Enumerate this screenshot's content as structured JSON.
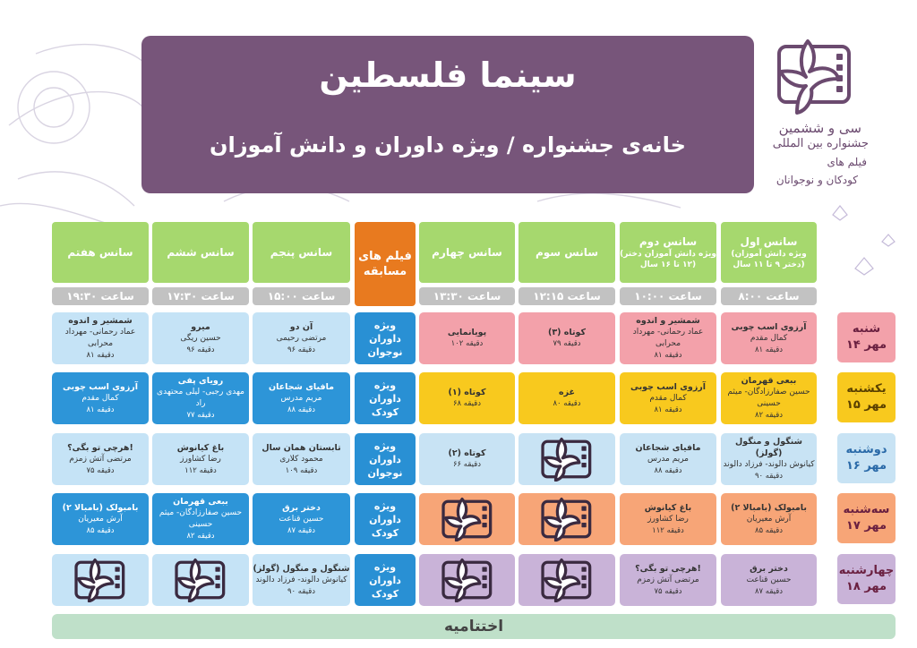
{
  "header": {
    "title": "سینما فلسطین",
    "subtitle": "خانه‌ی جشنواره / ویژه داوران و دانش آموزان"
  },
  "logo": {
    "line1": "سی و ششمین",
    "line2": "جشنواره بین المللی",
    "line3": "فیلم های",
    "line4": "کودکان و نوجوانان"
  },
  "columns": [
    {
      "label": "سانس اول",
      "sub": "(ویژه دانش آموزان دختر ۹ تا ۱۱ سال)",
      "time": "ساعت ۸:۰۰"
    },
    {
      "label": "سانس دوم",
      "sub": "(ویژه دانش آموزان دختر ۱۲ تا ۱۶ سال)",
      "time": "ساعت ۱۰:۰۰"
    },
    {
      "label": "سانس سوم",
      "sub": "",
      "time": "ساعت ۱۲:۱۵"
    },
    {
      "label": "سانس چهارم",
      "sub": "",
      "time": "ساعت ۱۳:۳۰"
    },
    {
      "label": "فیلم های مسابقه",
      "sub": "",
      "time": ""
    },
    {
      "label": "سانس پنجم",
      "sub": "",
      "time": "ساعت ۱۵:۰۰"
    },
    {
      "label": "سانس ششم",
      "sub": "",
      "time": "ساعت ۱۷:۳۰"
    },
    {
      "label": "سانس هفتم",
      "sub": "",
      "time": "ساعت ۱۹:۳۰"
    }
  ],
  "days": [
    {
      "name": "شنبه",
      "date": "۱۴ مهر",
      "category": [
        "ویژه",
        "داوران نوجوان"
      ]
    },
    {
      "name": "یکشنبه",
      "date": "۱۵ مهر",
      "category": [
        "ویژه",
        "داوران کودک"
      ]
    },
    {
      "name": "دوشنبه",
      "date": "۱۶ مهر",
      "category": [
        "ویژه",
        "داوران نوجوان"
      ]
    },
    {
      "name": "سه‌شنبه",
      "date": "۱۷ مهر",
      "category": [
        "ویژه",
        "داوران کودک"
      ]
    },
    {
      "name": "چهارشنبه",
      "date": "۱۸ مهر",
      "category": [
        "ویژه",
        "داوران کودک"
      ]
    }
  ],
  "cells": [
    [
      {
        "title": "آرزوی اسب چوبی",
        "director": "کمال مقدم",
        "duration": "۸۱ دقیقه"
      },
      {
        "title": "شمشیر و اندوه",
        "director": "عماد رحمانی- مهرداد محرابی",
        "duration": "۸۱ دقیقه"
      },
      {
        "title": "کوتاه (۳)",
        "director": "",
        "duration": "۷۹ دقیقه"
      },
      {
        "title": "پویانمایی",
        "director": "",
        "duration": "۱۰۲ دقیقه"
      },
      {
        "title": "آن دو",
        "director": "مرتضی رحیمی",
        "duration": "۹۶ دقیقه"
      },
      {
        "title": "میرو",
        "director": "حسین ریگی",
        "duration": "۹۶ دقیقه"
      },
      {
        "title": "شمشیر و اندوه",
        "director": "عماد رحمانی- مهرداد محرابی",
        "duration": "۸۱ دقیقه"
      }
    ],
    [
      {
        "title": "ببعی قهرمان",
        "director": "حسین صفارزادگان- میثم حسینی",
        "duration": "۸۲ دقیقه"
      },
      {
        "title": "آرزوی اسب چوبی",
        "director": "کمال مقدم",
        "duration": "۸۱ دقیقه"
      },
      {
        "title": "غزه",
        "director": "",
        "duration": "۸۰ دقیقه"
      },
      {
        "title": "کوتاه (۱)",
        "director": "",
        "duration": "۶۸ دقیقه"
      },
      {
        "title": "مافیای شجاعان",
        "director": "مریم مدرس",
        "duration": "۸۸ دقیقه"
      },
      {
        "title": "رویای پفی",
        "director": "مهدی رجبی- لیلی محتهدی راد",
        "duration": "۷۷ دقیقه"
      },
      {
        "title": "آرزوی اسب چوبی",
        "director": "کمال مقدم",
        "duration": "۸۱ دقیقه"
      }
    ],
    [
      {
        "title": "شنگول و منگول (گولز)",
        "director": "کیانوش دالوند- فرزاد دالوند",
        "duration": "۹۰ دقیقه"
      },
      {
        "title": "مافیای شجاعان",
        "director": "مریم مدرس",
        "duration": "۸۸ دقیقه"
      },
      null,
      {
        "title": "کوتاه (۲)",
        "director": "",
        "duration": "۶۶ دقیقه"
      },
      {
        "title": "تابستان همان سال",
        "director": "محمود کلاری",
        "duration": "۱۰۹ دقیقه"
      },
      {
        "title": "باغ کیانوش",
        "director": "رضا کشاورز",
        "duration": "۱۱۲ دقیقه"
      },
      {
        "title": "هرچی تو بگی؟!",
        "director": "مرتضی آتش زمزم",
        "duration": "۷۵ دقیقه"
      }
    ],
    [
      {
        "title": "بامبولک (بامبالا ۲)",
        "director": "آرش معیریان",
        "duration": "۸۵ دقیقه"
      },
      {
        "title": "باغ کیانوش",
        "director": "رضا کشاورز",
        "duration": "۱۱۲ دقیقه"
      },
      null,
      null,
      {
        "title": "دختر برق",
        "director": "حسین قناعت",
        "duration": "۸۷ دقیقه"
      },
      {
        "title": "ببعی قهرمان",
        "director": "حسین صفارزادگان- میثم حسینی",
        "duration": "۸۲ دقیقه"
      },
      {
        "title": "بامبولک (بامبالا ۲)",
        "director": "آرش معیریان",
        "duration": "۸۵ دقیقه"
      }
    ],
    [
      {
        "title": "دختر برق",
        "director": "حسین قناعت",
        "duration": "۸۷ دقیقه"
      },
      {
        "title": "هرچی تو بگی؟!",
        "director": "مرتضی آتش زمزم",
        "duration": "۷۵ دقیقه"
      },
      null,
      null,
      {
        "title": "شنگول و منگول (گولز)",
        "director": "کیانوش دالوند- فرزاد دالوند",
        "duration": "۹۰ دقیقه"
      },
      null,
      null
    ]
  ],
  "closing": "اختتامیه",
  "colors": {
    "header_bg": "#77557a",
    "column_head": "#a6d86e",
    "competition_head": "#e87a1f",
    "time_bar": "#c2c2c2",
    "row1": "#f3a1aa",
    "row2": "#f8c91e",
    "row3": "#c8e3f4",
    "row4": "#f7a577",
    "row5": "#c9b3d8",
    "light_blue": "#c5e3f6",
    "dark_blue": "#2d95d8",
    "category_blue": "#2990d4",
    "closing": "#bfe0c9"
  }
}
